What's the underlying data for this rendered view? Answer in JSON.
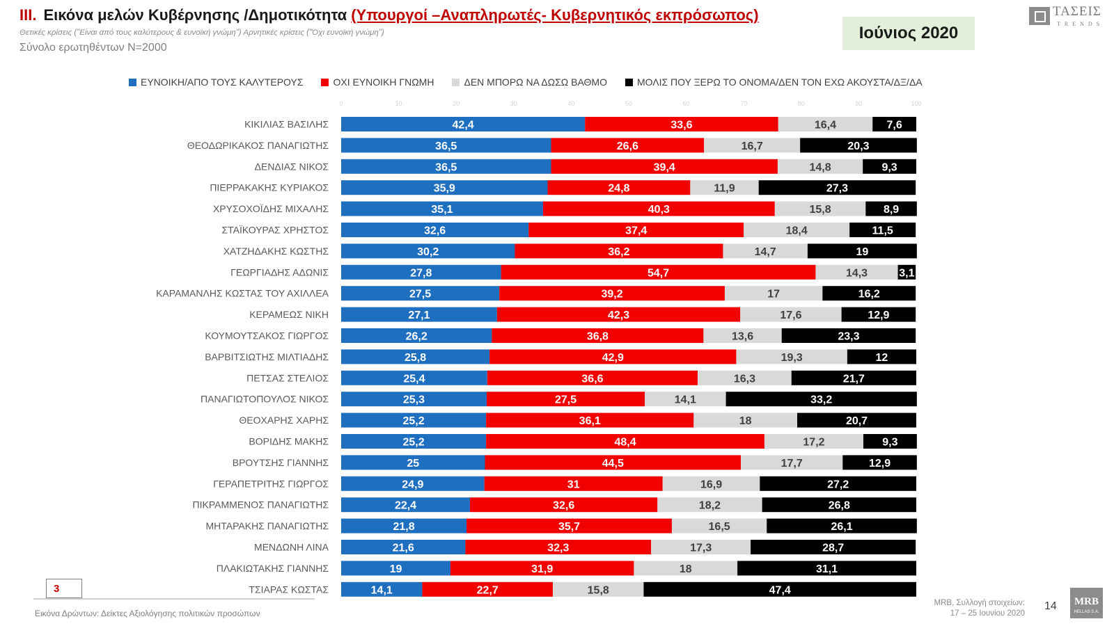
{
  "header": {
    "number": "III.",
    "title": "Εικόνα μελών Κυβέρνησης /Δημοτικότητα",
    "subtitle": "(Υπουργοί –Αναπληρωτές- Κυβερνητικός εκπρόσωπος)",
    "note": "Θετικές κρίσεις (\"Είναι από τους καλύτερους & ευνοϊκή γνώμη\") Αρνητικές κρίσεις (\"Όχι ευνοϊκή γνώμη\")",
    "sample": "Σύνολο ερωτηθέντων N=2000",
    "date": "Ιούνιος 2020"
  },
  "logo_top": {
    "brand": "ΤΑΣΕΙΣ",
    "tagline": "TRENDS"
  },
  "colors": {
    "blue": "#1f6fc0",
    "red": "#f20000",
    "gray": "#d9d9d9",
    "black": "#000000",
    "accent": "#c00000"
  },
  "chart_data": {
    "type": "bar",
    "orientation": "horizontal",
    "stacked": true,
    "xlim": [
      0,
      100
    ],
    "xticks": [
      "0",
      "10",
      "20",
      "30",
      "40",
      "50",
      "60",
      "70",
      "80",
      "90",
      "100"
    ],
    "categories": [
      "ΚΙΚΙΛΙΑΣ ΒΑΣΙΛΗΣ",
      "ΘΕΟΔΩΡΙΚΑΚΟΣ ΠΑΝΑΓΙΩΤΗΣ",
      "ΔΕΝΔΙΑΣ ΝΙΚΟΣ",
      "ΠΙΕΡΡΑΚΑΚΗΣ ΚΥΡΙΑΚΟΣ",
      "ΧΡΥΣΟΧΟΪΔΗΣ ΜΙΧΑΛΗΣ",
      "ΣΤΑΪΚΟΥΡΑΣ ΧΡΗΣΤΟΣ",
      "ΧΑΤΖΗΔΑΚΗΣ ΚΩΣΤΗΣ",
      "ΓΕΩΡΓΙΑΔΗΣ ΑΔΩΝΙΣ",
      "ΚΑΡΑΜΑΝΛΗΣ ΚΩΣΤΑΣ ΤΟΥ ΑΧΙΛΛΕΑ",
      "ΚΕΡΑΜΕΩΣ ΝΙΚΗ",
      "ΚΟΥΜΟΥΤΣΑΚΟΣ ΓΙΩΡΓΟΣ",
      "ΒΑΡΒΙΤΣΙΩΤΗΣ ΜΙΛΤΙΑΔΗΣ",
      "ΠΕΤΣΑΣ ΣΤΕΛΙΟΣ",
      "ΠΑΝΑΓΙΩΤΟΠΟΥΛΟΣ ΝΙΚΟΣ",
      "ΘΕΟΧΑΡΗΣ ΧΑΡΗΣ",
      "ΒΟΡΙΔΗΣ ΜΑΚΗΣ",
      "ΒΡΟΥΤΣΗΣ ΓΙΑΝΝΗΣ",
      "ΓΕΡΑΠΕΤΡΙΤΗΣ ΓΙΩΡΓΟΣ",
      "ΠΙΚΡΑΜΜΕΝΟΣ ΠΑΝΑΓΙΩΤΗΣ",
      "ΜΗΤΑΡΑΚΗΣ ΠΑΝΑΓΙΩΤΗΣ",
      "ΜΕΝΔΩΝΗ ΛΙΝΑ",
      "ΠΛΑΚΙΩΤΑΚΗΣ ΓΙΑΝΝΗΣ",
      "ΤΣΙΑΡΑΣ ΚΩΣΤΑΣ"
    ],
    "series": [
      {
        "name": "ΕΥΝΟΙΚΗ/ΑΠΟ ΤΟΥΣ ΚΑΛΥΤΕΡΟΥΣ",
        "color": "#1f6fc0",
        "label_color": "#ffffff",
        "values": [
          42.4,
          36.5,
          36.5,
          35.9,
          35.1,
          32.6,
          30.2,
          27.8,
          27.5,
          27.1,
          26.2,
          25.8,
          25.4,
          25.3,
          25.2,
          25.2,
          25,
          24.9,
          22.4,
          21.8,
          21.6,
          19,
          14.1
        ]
      },
      {
        "name": "ΟΧΙ ΕΥΝΟΙΚΗ ΓΝΩΜΗ",
        "color": "#f20000",
        "label_color": "#ffffff",
        "values": [
          33.6,
          26.6,
          39.4,
          24.8,
          40.3,
          37.4,
          36.2,
          54.7,
          39.2,
          42.3,
          36.8,
          42.9,
          36.6,
          27.5,
          36.1,
          48.4,
          44.5,
          31,
          32.6,
          35.7,
          32.3,
          31.9,
          22.7
        ]
      },
      {
        "name": "ΔΕΝ ΜΠΟΡΩ ΝΑ ΔΩΣΩ ΒΑΘΜΟ",
        "color": "#d9d9d9",
        "label_color": "#404040",
        "values": [
          16.4,
          16.7,
          14.8,
          11.9,
          15.8,
          18.4,
          14.7,
          14.3,
          17,
          17.6,
          13.6,
          19.3,
          16.3,
          14.1,
          18,
          17.2,
          17.7,
          16.9,
          18.2,
          16.5,
          17.3,
          18,
          15.8
        ]
      },
      {
        "name": "ΜΟΛΙΣ ΠΟΥ ΞΕΡΩ ΤΟ ΟΝΟΜΑ/ΔΕΝ ΤΟΝ ΕΧΩ ΑΚΟΥΣΤΑ/ΔΞ/ΔΑ",
        "color": "#000000",
        "label_color": "#ffffff",
        "values": [
          7.6,
          20.3,
          9.3,
          27.3,
          8.9,
          11.5,
          19,
          3.1,
          16.2,
          12.9,
          23.3,
          12,
          21.7,
          33.2,
          20.7,
          9.3,
          12.9,
          27.2,
          26.8,
          26.1,
          28.7,
          31.1,
          47.4
        ]
      }
    ],
    "legend_position": "top",
    "grid": false
  },
  "footer": {
    "page_box": "3",
    "caption": "Εικόνα Δρώντων: Δείκτες Αξιολόγησης πολιτικών προσώπων",
    "source_line1": "MRB, Συλλογή στοιχείων:",
    "source_line2": "17 – 25 Ιουνίου 2020",
    "page_number": "14",
    "logo_main": "MRB",
    "logo_sub": "HELLAS S.A."
  }
}
